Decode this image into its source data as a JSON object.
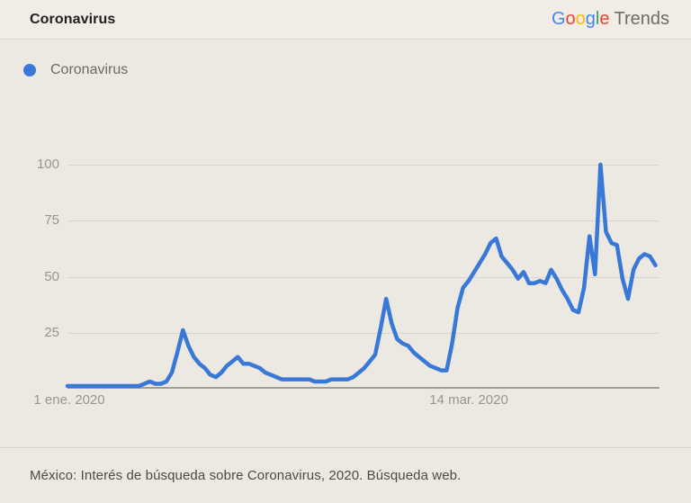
{
  "header": {
    "title": "Coronavirus",
    "logo_letters": [
      {
        "ch": "G",
        "color": "#4285F4"
      },
      {
        "ch": "o",
        "color": "#EA4335"
      },
      {
        "ch": "o",
        "color": "#FBBC05"
      },
      {
        "ch": "g",
        "color": "#4285F4"
      },
      {
        "ch": "l",
        "color": "#34A853"
      },
      {
        "ch": "e",
        "color": "#EA4335"
      }
    ],
    "logo_suffix": "Trends"
  },
  "legend": {
    "label": "Coronavirus",
    "dot_color": "#3a78d8"
  },
  "chart_data": {
    "type": "line",
    "series": [
      {
        "name": "Coronavirus",
        "color": "#3a78d8",
        "values": [
          1,
          1,
          1,
          1,
          1,
          1,
          1,
          1,
          1,
          1,
          1,
          1,
          1,
          1,
          2,
          3,
          2,
          2,
          3,
          7,
          16,
          26,
          19,
          14,
          11,
          9,
          6,
          5,
          7,
          10,
          12,
          14,
          11,
          11,
          10,
          9,
          7,
          6,
          5,
          4,
          4,
          4,
          4,
          4,
          4,
          3,
          3,
          3,
          4,
          4,
          4,
          4,
          5,
          7,
          9,
          12,
          15,
          27,
          40,
          29,
          22,
          20,
          19,
          16,
          14,
          12,
          10,
          9,
          8,
          8,
          20,
          36,
          45,
          48,
          52,
          56,
          60,
          65,
          67,
          59,
          56,
          53,
          49,
          52,
          47,
          47,
          48,
          47,
          53,
          49,
          44,
          40,
          35,
          34,
          45,
          68,
          51,
          100,
          70,
          65,
          64,
          49,
          40,
          53,
          58,
          60,
          59,
          55
        ]
      }
    ],
    "x_unit": "day",
    "x_range": [
      "1 ene. 2020",
      "17 abr. 2020"
    ],
    "x_tick_labels": [
      "1 ene. 2020",
      "14 mar. 2020"
    ],
    "y_tick_labels": [
      "100",
      "75",
      "50",
      "25"
    ],
    "ylim": [
      0,
      100
    ],
    "grid": true,
    "legend_position": "top-left"
  },
  "footer": {
    "caption": "México: Interés de búsqueda sobre Coronavirus, 2020. Búsqueda web."
  }
}
